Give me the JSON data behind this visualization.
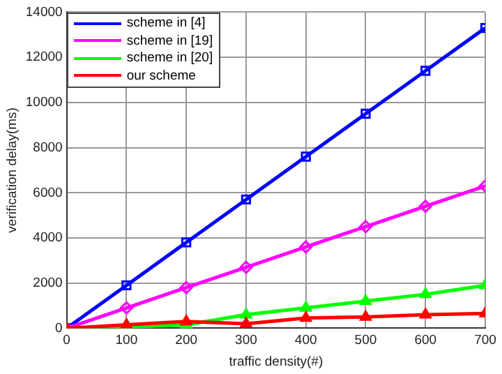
{
  "chart_data": {
    "type": "line",
    "xlabel": "traffic density(#)",
    "ylabel": "verification delay(ms)",
    "x": [
      0,
      100,
      200,
      300,
      400,
      500,
      600,
      700
    ],
    "series": [
      {
        "name": "scheme in [4]",
        "color": "#0000ff",
        "marker": "square",
        "values": [
          0,
          1900,
          3800,
          5700,
          7600,
          9500,
          11400,
          13300
        ]
      },
      {
        "name": "scheme in [19]",
        "color": "#ff00ff",
        "marker": "diamond",
        "values": [
          0,
          900,
          1800,
          2700,
          3600,
          4500,
          5400,
          6300
        ]
      },
      {
        "name": "scheme in [20]",
        "color": "#00ff00",
        "marker": "triangle",
        "values": [
          0,
          50,
          150,
          600,
          900,
          1200,
          1500,
          1900
        ]
      },
      {
        "name": "our scheme",
        "color": "#ff0000",
        "marker": "triangle",
        "values": [
          0,
          150,
          300,
          200,
          450,
          500,
          600,
          650
        ]
      }
    ],
    "xlim": [
      0,
      700
    ],
    "xticks": [
      0,
      100,
      200,
      300,
      400,
      500,
      600,
      700
    ],
    "ylim": [
      0,
      14000
    ],
    "yticks": [
      0,
      2000,
      4000,
      6000,
      8000,
      10000,
      12000,
      14000
    ],
    "grid": true,
    "legend": "top left",
    "line_style": "solid"
  }
}
